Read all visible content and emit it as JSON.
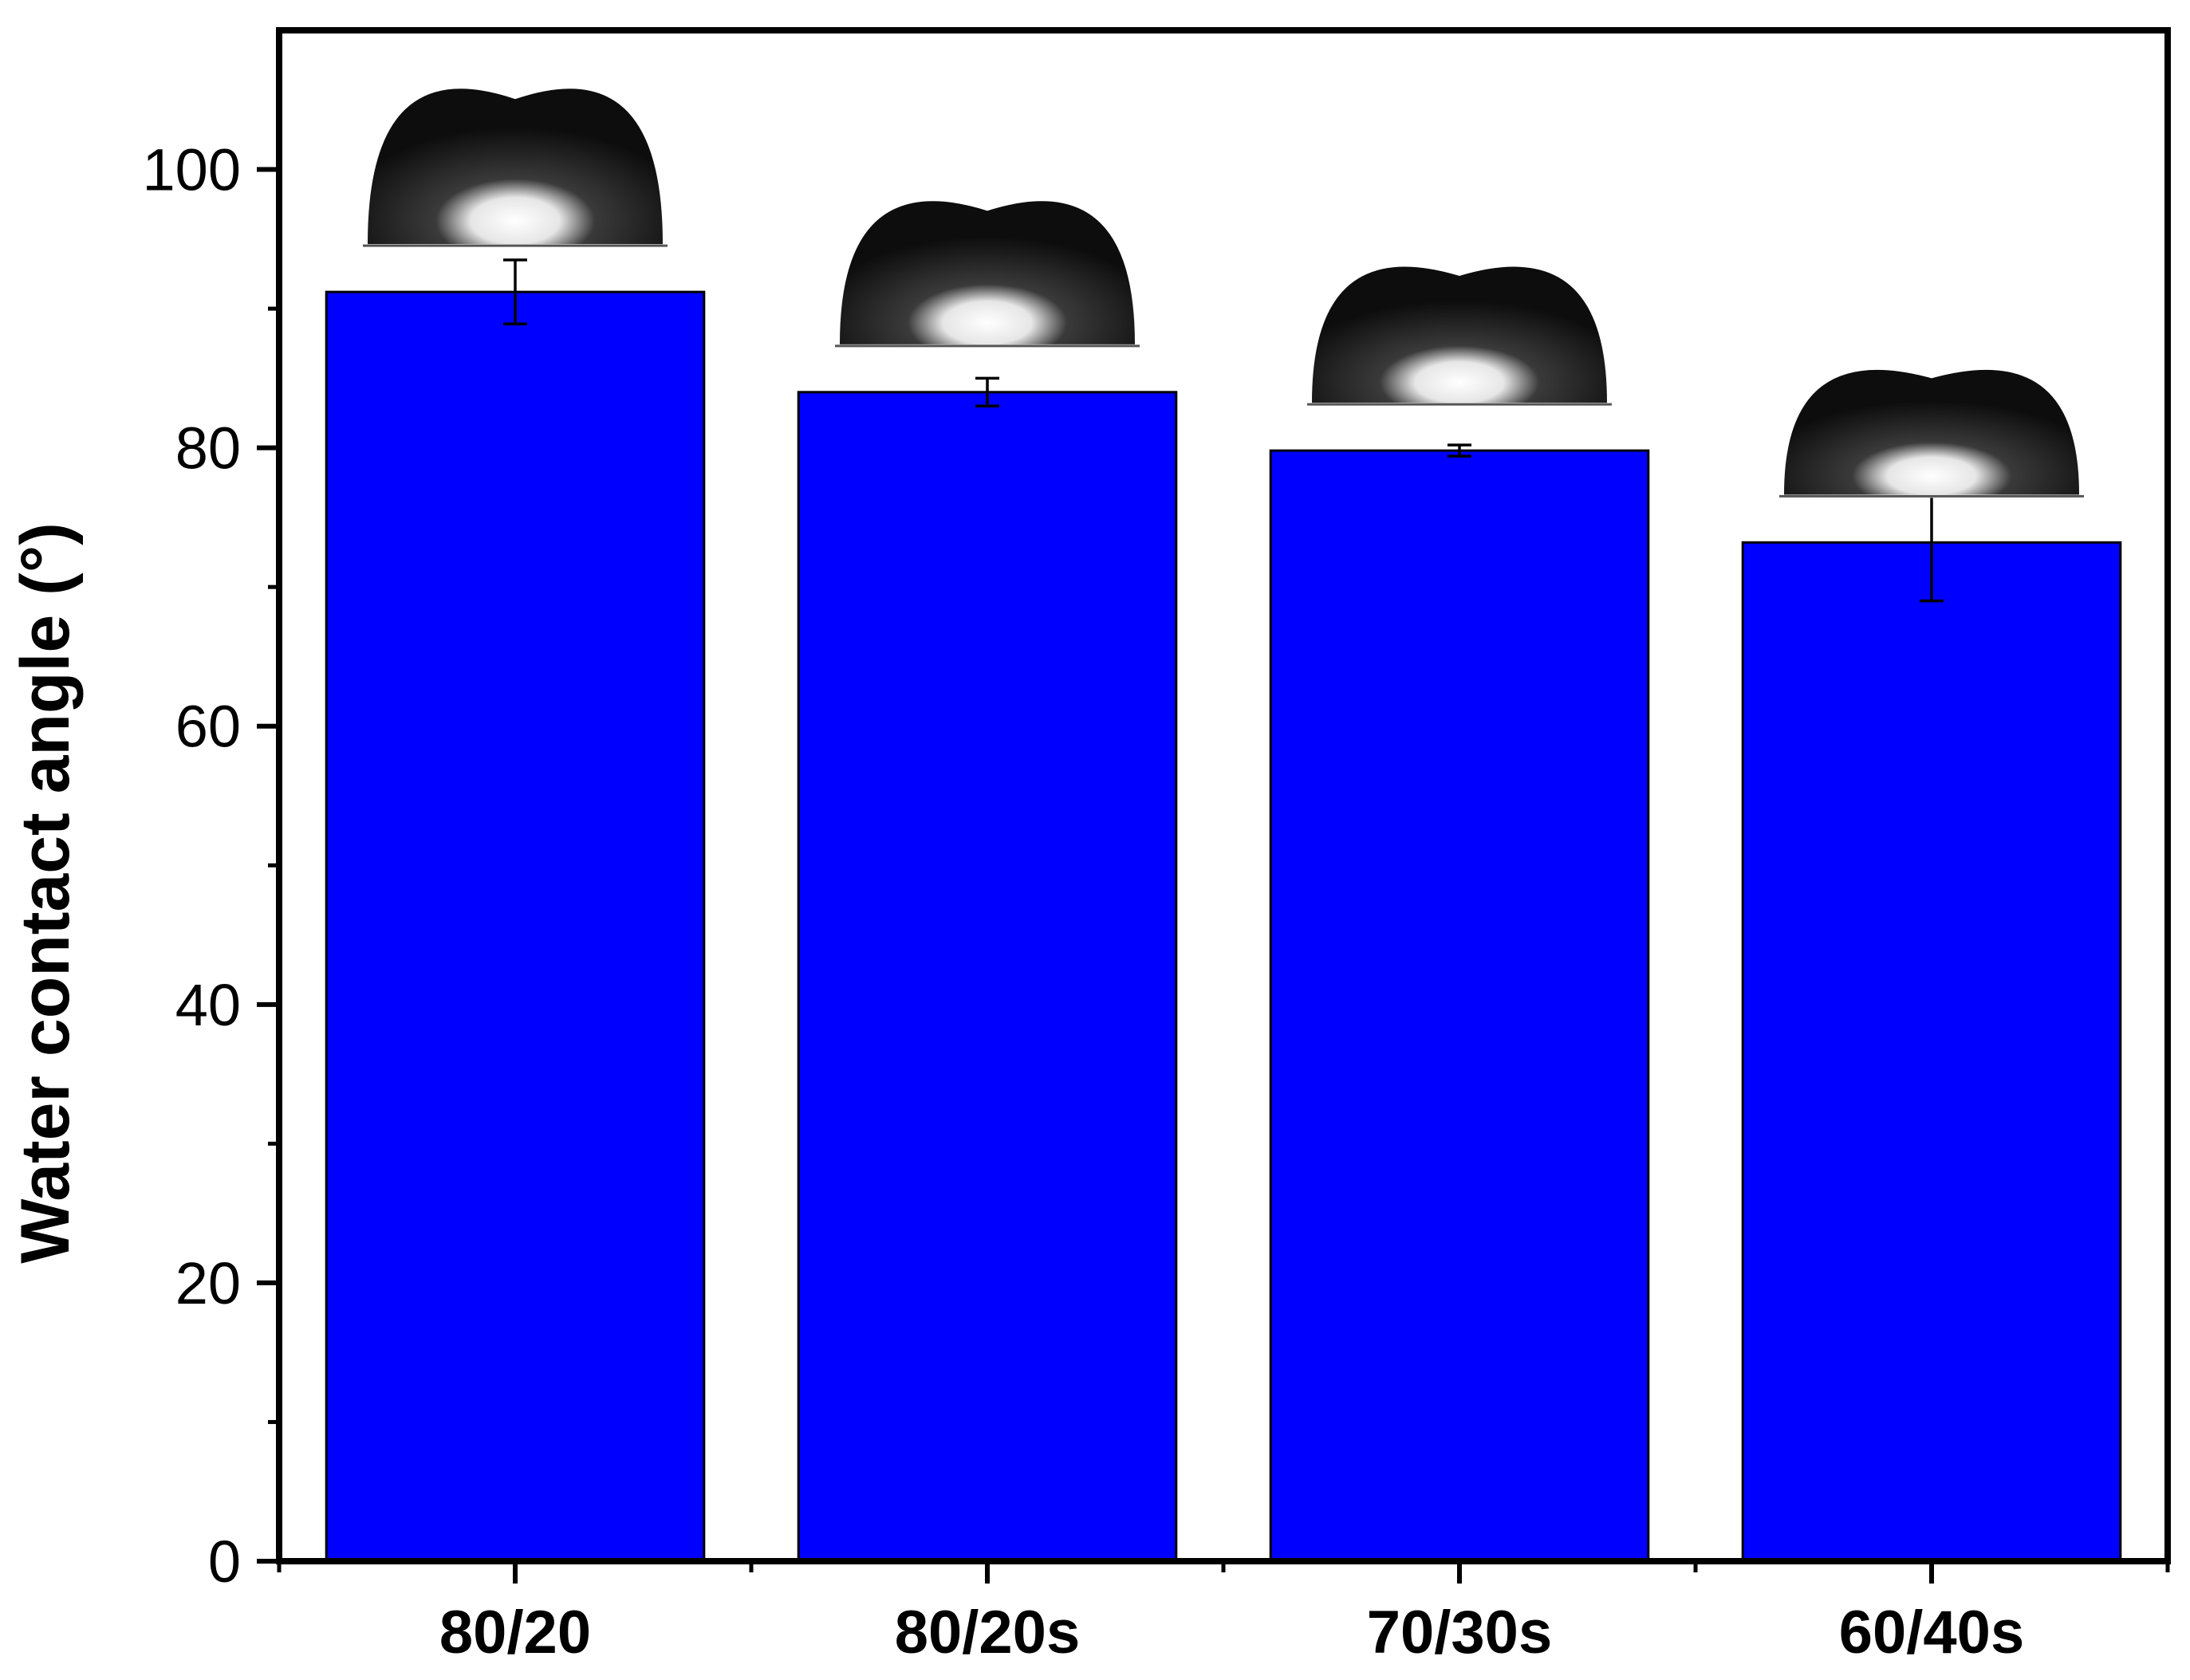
{
  "chart_data": {
    "type": "bar",
    "categories": [
      "80/20",
      "80/20s",
      "70/30s",
      "60/40s"
    ],
    "values": [
      91.2,
      84.0,
      79.8,
      73.2
    ],
    "errors": [
      2.3,
      1.0,
      0.4,
      4.2
    ],
    "title": "",
    "xlabel": "",
    "ylabel": "Water contact angle (°)",
    "ylim": [
      0,
      110
    ],
    "yticks": [
      0,
      20,
      40,
      60,
      80,
      100
    ],
    "ytick_labels": [
      "0",
      "20",
      "40",
      "60",
      "80",
      "100"
    ],
    "minor_ytick_step": 10,
    "grid": false,
    "legend": "none",
    "bar_color": "#0000ff",
    "insets": "water droplet photograph above each bar"
  }
}
